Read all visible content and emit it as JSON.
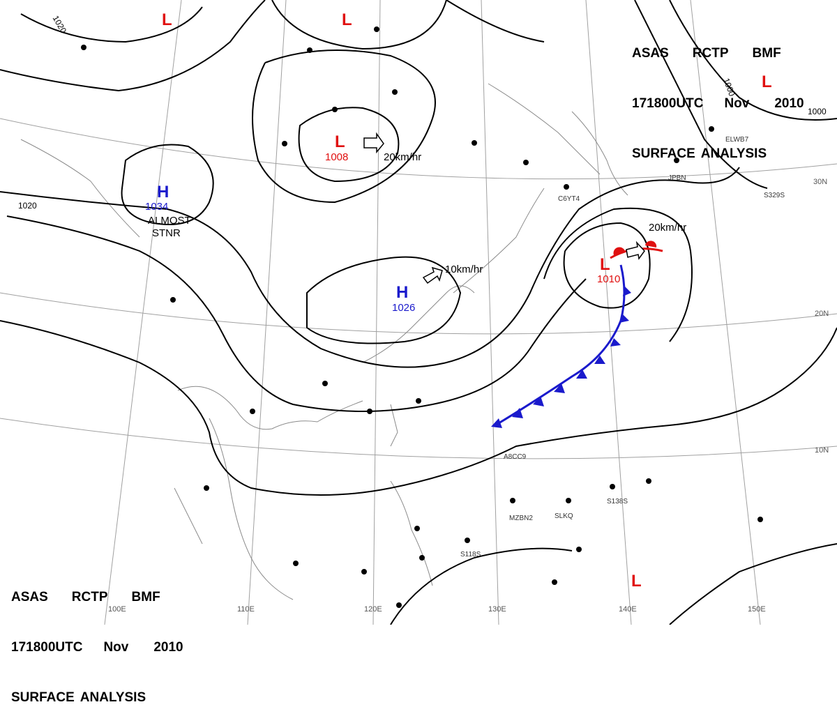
{
  "header": {
    "line1": [
      "ASAS",
      "RCTP",
      "BMF"
    ],
    "line2": [
      "171800UTC",
      "Nov",
      "2010"
    ],
    "line3": [
      "SURFACE",
      "ANALYSIS"
    ]
  },
  "pressure_centers": [
    {
      "type": "H",
      "value": "1034",
      "color": "#1a1acc"
    },
    {
      "type": "H",
      "value": "1026",
      "color": "#1a1acc"
    },
    {
      "type": "L",
      "value": "1008",
      "color": "#e01010"
    },
    {
      "type": "L",
      "value": "1010",
      "color": "#e01010"
    },
    {
      "type": "L",
      "value": "",
      "color": "#e01010"
    }
  ],
  "motion": [
    "20km/hr",
    "20km/hr",
    "10km/hr"
  ],
  "notes": [
    "ALMOST",
    "STNR"
  ],
  "isobar_labels": [
    "1020",
    "1020",
    "1000",
    "1000"
  ],
  "longitude_labels": [
    "100E",
    "110E",
    "120E",
    "130E",
    "140E",
    "150E"
  ],
  "latitude_labels": [
    "30N",
    "20N",
    "10N"
  ],
  "station_ids": [
    "JPBN",
    "C6YT4",
    "S329S",
    "ELWB7",
    "A8CC9",
    "MZBN2",
    "SLKQ",
    "S138S",
    "S118S"
  ],
  "colors": {
    "high": "#1a1acc",
    "low": "#e01010",
    "warm_front": "#e01010",
    "cold_front": "#1a1acc",
    "isobar": "#000000",
    "grid": "#9a9a9a",
    "coast": "#888888"
  }
}
